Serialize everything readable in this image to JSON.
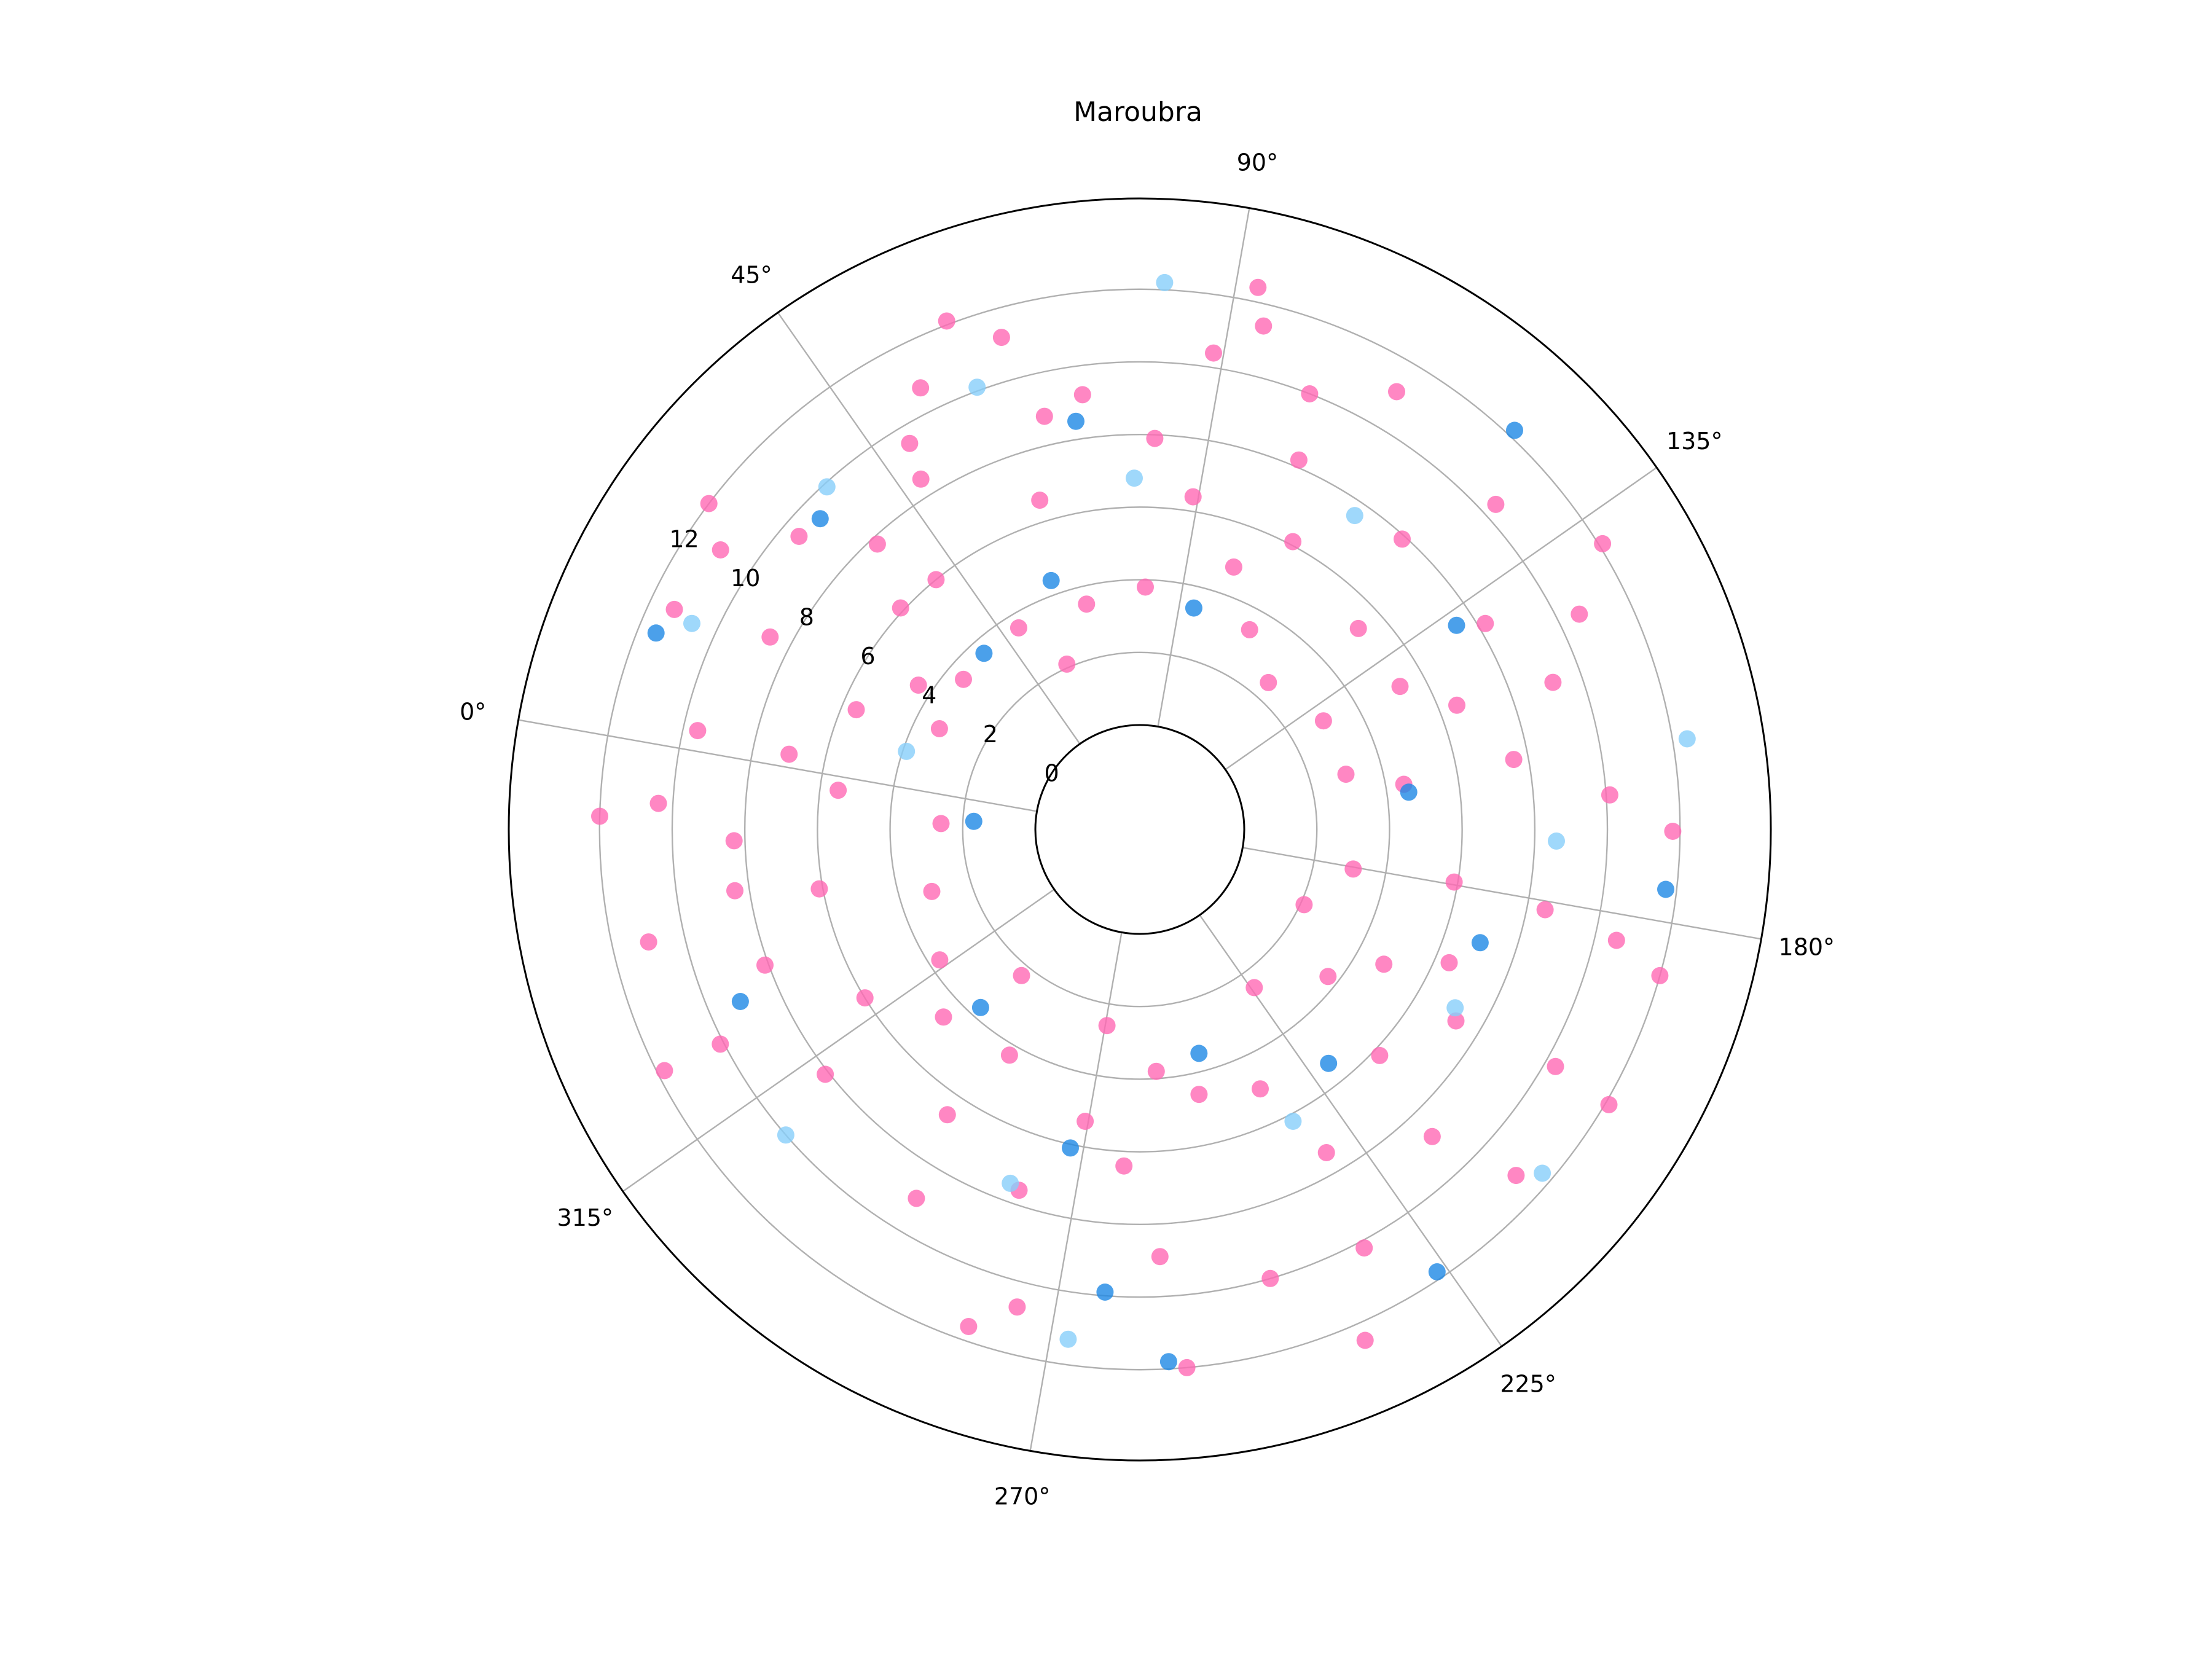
{
  "chart_data": {
    "type": "scatter",
    "projection": "polar",
    "title": "Maroubra",
    "theta_direction": "clockwise",
    "theta_zero_location": "left, rotated about 10° toward the bottom",
    "theta_ticks": [
      0,
      45,
      90,
      135,
      180,
      225,
      270,
      315
    ],
    "theta_tick_labels": [
      "0°",
      "45°",
      "90°",
      "135°",
      "180°",
      "225°",
      "270°",
      "315°"
    ],
    "r_ticks": [
      0,
      2,
      4,
      6,
      8,
      10,
      12
    ],
    "r_tick_labels": [
      "0",
      "2",
      "4",
      "6",
      "8",
      "10",
      "12"
    ],
    "r_origin": -4,
    "r_max": 14.5,
    "grid": true,
    "marker": "circle",
    "series_colors": [
      "#ff69b4",
      "#1e88e5",
      "#87cefa"
    ],
    "series": [
      {
        "color": "#ff69b4",
        "points_r_theta": [
          [
            3.3,
            16.7
          ],
          [
            5.6,
            12.9
          ],
          [
            8.6,
            17.5
          ],
          [
            11.3,
            15.3
          ],
          [
            11.0,
            23.7
          ],
          [
            12.0,
            27.1
          ],
          [
            9.5,
            30.7
          ],
          [
            6.1,
            32.8
          ],
          [
            3.5,
            30.4
          ],
          [
            3.6,
            49.0
          ],
          [
            6.0,
            40.8
          ],
          [
            8.5,
            48.0
          ],
          [
            9.5,
            49.2
          ],
          [
            10.7,
            53.6
          ],
          [
            12.1,
            59.2
          ],
          [
            11.2,
            64.3
          ],
          [
            8.8,
            67.0
          ],
          [
            6.6,
            63.1
          ],
          [
            3.5,
            66.7
          ],
          [
            3.8,
            81.3
          ],
          [
            6.4,
            89.1
          ],
          [
            7.9,
            82.2
          ],
          [
            10.4,
            88.8
          ],
          [
            11.4,
            93.8
          ],
          [
            12.4,
            92.3
          ],
          [
            10.0,
            101.3
          ],
          [
            8.2,
            103.3
          ],
          [
            6.1,
            108.0
          ],
          [
            3.4,
            108.8
          ],
          [
            2.5,
            121.2
          ],
          [
            5.3,
            127.4
          ],
          [
            7.9,
            122.1
          ],
          [
            10.4,
            127.6
          ],
          [
            12.1,
            138.3
          ],
          [
            10.6,
            143.9
          ],
          [
            8.2,
            139.2
          ],
          [
            5.3,
            141.2
          ],
          [
            3.0,
            139.4
          ],
          [
            3.0,
            155.0
          ],
          [
            4.5,
            160.3
          ],
          [
            7.6,
            159.4
          ],
          [
            10.1,
            165.8
          ],
          [
            11.8,
            170.2
          ],
          [
            10.6,
            183.1
          ],
          [
            8.5,
            181.2
          ],
          [
            5.9,
            179.5
          ],
          [
            3.1,
            180.5
          ],
          [
            2.1,
            194.6
          ],
          [
            4.8,
            198.9
          ],
          [
            7.3,
            201.2
          ],
          [
            10.3,
            199.7
          ],
          [
            12.1,
            200.4
          ],
          [
            11.2,
            212.6
          ],
          [
            8.8,
            216.4
          ],
          [
            6.2,
            213.3
          ],
          [
            3.7,
            208.0
          ],
          [
            2.5,
            224.1
          ],
          [
            5.0,
            235.1
          ],
          [
            7.4,
            230.0
          ],
          [
            10.2,
            231.8
          ],
          [
            12.5,
            236.2
          ],
          [
            12.0,
            255.0
          ],
          [
            8.9,
            257.3
          ],
          [
            6.4,
            262.7
          ],
          [
            3.8,
            256.1
          ],
          [
            2.6,
            269.5
          ],
          [
            5.3,
            270.6
          ],
          [
            7.6,
            278.5
          ],
          [
            10.7,
            274.4
          ],
          [
            11.6,
            279.0
          ],
          [
            9.0,
            291.2
          ],
          [
            6.6,
            294.0
          ],
          [
            4.3,
            290.0
          ],
          [
            2.3,
            299.0
          ],
          [
            3.7,
            316.9
          ],
          [
            6.0,
            318.5
          ],
          [
            8.1,
            312.1
          ],
          [
            10.1,
            322.9
          ],
          [
            11.8,
            323.1
          ],
          [
            11.0,
            337.1
          ],
          [
            8.4,
            341.4
          ],
          [
            6.1,
            339.5
          ],
          [
            3.1,
            333.4
          ],
          [
            2.6,
            351.7
          ],
          [
            5.5,
            357.4
          ],
          [
            8.3,
            348.4
          ],
          [
            10.4,
            353.1
          ],
          [
            12.0,
            351.4
          ],
          [
            7.0,
            2.1
          ],
          [
            4.4,
            23.1
          ],
          [
            9.2,
            72.5
          ],
          [
            4.8,
            99.7
          ],
          [
            9.2,
            150.4
          ],
          [
            6.4,
            193.3
          ],
          [
            10.0,
            243.8
          ],
          [
            4.6,
            306.3
          ],
          [
            9.6,
            2.6
          ],
          [
            7.8,
            37.4
          ],
          [
            2.1,
            56.2
          ],
          [
            11.1,
            110.4
          ],
          [
            6.5,
            148.6
          ],
          [
            12.0,
            185.7
          ],
          [
            4.6,
            247.4
          ],
          [
            8.1,
            330.1
          ]
        ]
      },
      {
        "color": "#1e88e5",
        "points_r_theta": [
          [
            11.5,
            12.1
          ],
          [
            9.4,
            34.2
          ],
          [
            3.6,
            38.5
          ],
          [
            4.4,
            60.4
          ],
          [
            8.5,
            71.1
          ],
          [
            3.4,
            93.7
          ],
          [
            12.2,
            123.2
          ],
          [
            7.5,
            137.2
          ],
          [
            4.6,
            162.1
          ],
          [
            11.7,
            176.5
          ],
          [
            7.0,
            188.4
          ],
          [
            5.4,
            221.1
          ],
          [
            11.8,
            226.1
          ],
          [
            3.5,
            245.2
          ],
          [
            11.8,
            256.9
          ],
          [
            9.9,
            264.3
          ],
          [
            6.1,
            272.3
          ],
          [
            3.7,
            301.8
          ],
          [
            9.1,
            326.7
          ],
          [
            1.7,
            352.8
          ]
        ]
      },
      {
        "color": "#87cefa",
        "points_r_theta": [
          [
            10.7,
            14.7
          ],
          [
            9.9,
            37.6
          ],
          [
            10.1,
            59.8
          ],
          [
            6.8,
            79.1
          ],
          [
            12.2,
            82.6
          ],
          [
            7.6,
            114.4
          ],
          [
            12.4,
            160.6
          ],
          [
            8.6,
            171.6
          ],
          [
            7.1,
            199.5
          ],
          [
            11.7,
            210.5
          ],
          [
            6.2,
            232.3
          ],
          [
            11.3,
            268.0
          ],
          [
            7.5,
            280.1
          ],
          [
            10.0,
            309.2
          ],
          [
            3.9,
            8.5
          ]
        ]
      }
    ]
  }
}
